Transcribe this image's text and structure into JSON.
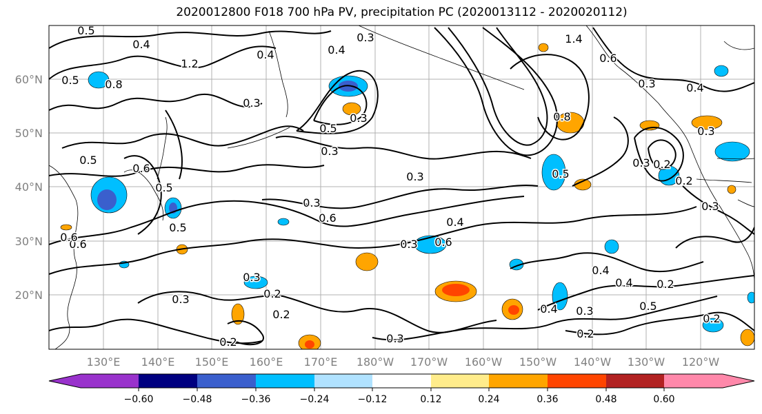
{
  "title": "2020012800 F018 700 hPa PV, precipitation PC (2020013112 - 2020020112)",
  "lat_labels": [
    "60°N",
    "50°N",
    "40°N",
    "30°N",
    "20°N"
  ],
  "lon_labels": [
    "130°E",
    "140°E",
    "150°E",
    "160°E",
    "170°E",
    "180°W",
    "170°W",
    "160°W",
    "150°W",
    "140°W",
    "130°W",
    "120°W"
  ],
  "colorbar": {
    "ticks": [
      "−0.60",
      "−0.48",
      "−0.36",
      "−0.24",
      "−0.12",
      "0.12",
      "0.24",
      "0.36",
      "0.48",
      "0.60"
    ],
    "colors": [
      "#9932cc",
      "#000080",
      "#3a5fcd",
      "#00bfff",
      "#b0e2ff",
      "#ffffff",
      "#ffec8b",
      "#ffa500",
      "#ff4500",
      "#b22222",
      "#ff88aa"
    ]
  },
  "contour_labels": [
    "0.5",
    "0.4",
    "1.2",
    "0.8",
    "0.5",
    "0.4",
    "0.3",
    "0.4",
    "0.3",
    "0.5",
    "0.3",
    "0.3",
    "0.8",
    "1.4",
    "0.6",
    "0.3",
    "0.4",
    "0.6",
    "0.5",
    "0.3",
    "0.6",
    "0.5",
    "0.6",
    "0.5",
    "0.3",
    "0.4",
    "0.6",
    "0.3",
    "0.2",
    "0.4",
    "0.3",
    "0.2",
    "0.3",
    "0.2",
    "0.2",
    "0.4",
    "0.3",
    "0.2",
    "0.3",
    "0.4",
    "0.5",
    "0.2",
    "0.2",
    "0.2",
    "0.3",
    "0.5",
    "0.3",
    "0.6",
    "0.3"
  ]
}
